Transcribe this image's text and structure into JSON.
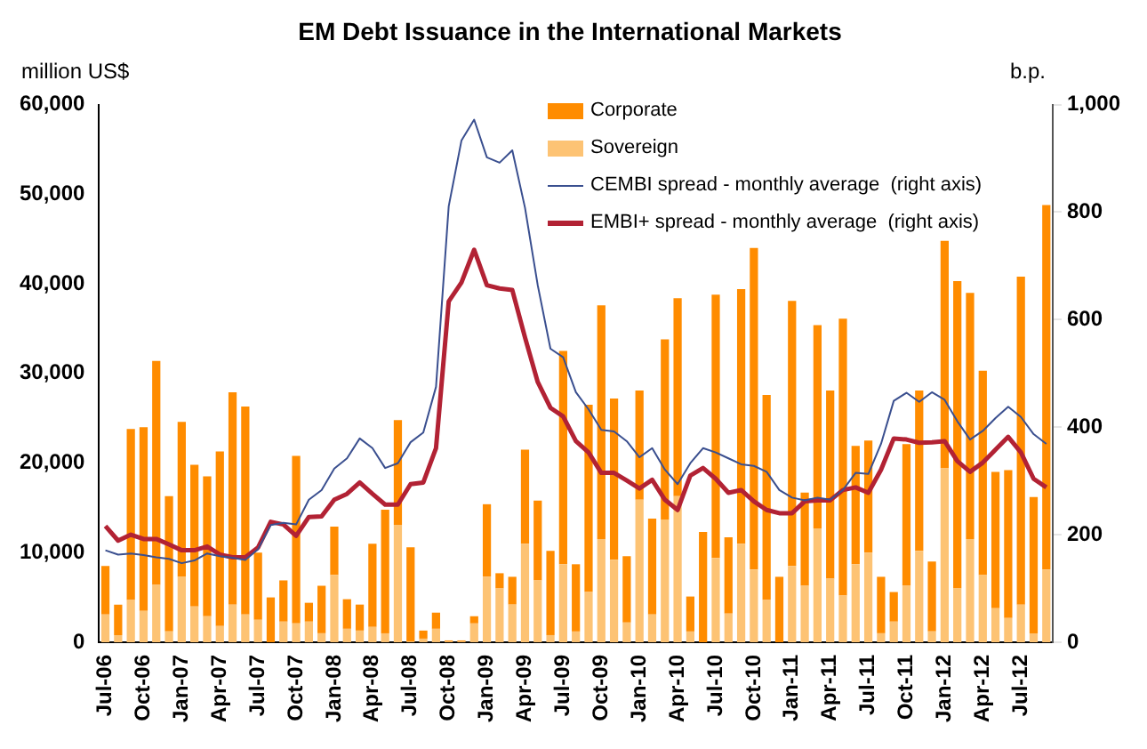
{
  "chart_data": {
    "type": "bar",
    "title": "EM Debt Issuance in the International Markets",
    "ylabel": "million US$",
    "y2label": "b.p.",
    "categories": [
      "Jul-06",
      null,
      null,
      "Oct-06",
      null,
      null,
      "Jan-07",
      null,
      null,
      "Apr-07",
      null,
      null,
      "Jul-07",
      null,
      null,
      "Oct-07",
      null,
      null,
      "Jan-08",
      null,
      null,
      "Apr-08",
      null,
      null,
      "Jul-08",
      null,
      null,
      "Oct-08",
      null,
      null,
      "Jan-09",
      null,
      null,
      "Apr-09",
      null,
      null,
      "Jul-09",
      null,
      null,
      "Oct-09",
      null,
      null,
      "Jan-10",
      null,
      null,
      "Apr-10",
      null,
      null,
      "Jul-10",
      null,
      null,
      "Oct-10",
      null,
      null,
      "Jan-11",
      null,
      null,
      "Apr-11",
      null,
      null,
      "Jul-11",
      null,
      null,
      "Oct-11",
      null,
      null,
      "Jan-12",
      null,
      null,
      "Apr-12",
      null,
      null,
      "Jul-12",
      null,
      null
    ],
    "stacked": true,
    "series": [
      {
        "name": "Sovereign",
        "color": "#fdc374",
        "values": [
          3100,
          800,
          4700,
          3500,
          6400,
          1200,
          7300,
          4000,
          2900,
          1800,
          4200,
          3100,
          2500,
          0,
          2300,
          2100,
          2300,
          1000,
          7500,
          1500,
          1300,
          1700,
          1000,
          13100,
          100,
          400,
          1500,
          100,
          100,
          2100,
          7300,
          6000,
          4200,
          11000,
          6900,
          800,
          8700,
          1200,
          5600,
          11500,
          9200,
          2200,
          15900,
          3100,
          13700,
          16300,
          1200,
          0,
          9400,
          3200,
          11000,
          8100,
          4700,
          0,
          8500,
          6300,
          12700,
          7100,
          5200,
          8700,
          10000,
          1000,
          2300,
          6300,
          10200,
          1200,
          19400,
          6000,
          11500,
          7500,
          3800,
          2700,
          4200,
          1000,
          8100
        ]
      },
      {
        "name": "Corporate",
        "color": "#ff8c00",
        "values": [
          5400,
          3400,
          19100,
          20500,
          25000,
          15100,
          17300,
          15800,
          15600,
          19500,
          23700,
          23200,
          7500,
          5000,
          4600,
          18700,
          2100,
          5300,
          5400,
          3300,
          2900,
          9300,
          13800,
          11700,
          10500,
          900,
          1800,
          100,
          100,
          800,
          8100,
          1700,
          3100,
          10500,
          8900,
          9400,
          23800,
          7500,
          20900,
          26100,
          18000,
          7400,
          12200,
          10700,
          20100,
          22100,
          3900,
          12300,
          29400,
          8500,
          28400,
          35900,
          22900,
          7300,
          29600,
          10400,
          22700,
          21000,
          30900,
          13200,
          12500,
          6300,
          3300,
          15800,
          17900,
          7800,
          25400,
          34300,
          27500,
          22800,
          15200,
          16500,
          36600,
          15200,
          40700
        ]
      },
      {
        "name": "CEMBI spread - monthly average  (right axis)",
        "type": "line",
        "axis": "y2",
        "color": "#3a4f8f",
        "values": [
          171,
          163,
          165,
          162,
          158,
          155,
          147,
          152,
          165,
          160,
          157,
          153,
          173,
          218,
          222,
          219,
          265,
          283,
          323,
          342,
          379,
          361,
          324,
          333,
          372,
          390,
          475,
          811,
          933,
          972,
          902,
          892,
          915,
          808,
          664,
          546,
          530,
          465,
          433,
          395,
          392,
          374,
          344,
          361,
          321,
          294,
          333,
          361,
          353,
          342,
          331,
          328,
          317,
          283,
          269,
          264,
          269,
          265,
          283,
          315,
          313,
          369,
          449,
          464,
          447,
          465,
          451,
          411,
          377,
          393,
          417,
          438,
          419,
          387,
          369
        ]
      },
      {
        "name": "EMBI+ spread - monthly average  (right axis)",
        "type": "line",
        "axis": "y2",
        "color": "#b22234",
        "values": [
          216,
          189,
          200,
          192,
          192,
          182,
          171,
          171,
          178,
          163,
          158,
          158,
          176,
          224,
          219,
          198,
          233,
          234,
          265,
          276,
          297,
          276,
          256,
          256,
          294,
          297,
          361,
          634,
          669,
          730,
          664,
          658,
          655,
          567,
          484,
          436,
          420,
          374,
          353,
          315,
          315,
          301,
          286,
          302,
          265,
          246,
          310,
          324,
          304,
          278,
          283,
          262,
          246,
          240,
          240,
          262,
          264,
          264,
          283,
          288,
          278,
          321,
          379,
          377,
          371,
          372,
          374,
          337,
          317,
          334,
          358,
          382,
          353,
          304,
          288
        ]
      }
    ],
    "ylim": [
      0,
      60000
    ],
    "yticks": [
      {
        "value": 0,
        "label": "0"
      },
      {
        "value": 10000,
        "label": "10,000"
      },
      {
        "value": 20000,
        "label": "20,000"
      },
      {
        "value": 30000,
        "label": "30,000"
      },
      {
        "value": 40000,
        "label": "40,000"
      },
      {
        "value": 50000,
        "label": "50,000"
      },
      {
        "value": 60000,
        "label": "60,000"
      }
    ],
    "y2lim": [
      0,
      1000
    ],
    "y2ticks": [
      0,
      200,
      400,
      600,
      800,
      {
        "value": 1000,
        "label": "1,000"
      }
    ],
    "legend": "top",
    "grid": false,
    "marker": "none",
    "line_style": "solid"
  }
}
